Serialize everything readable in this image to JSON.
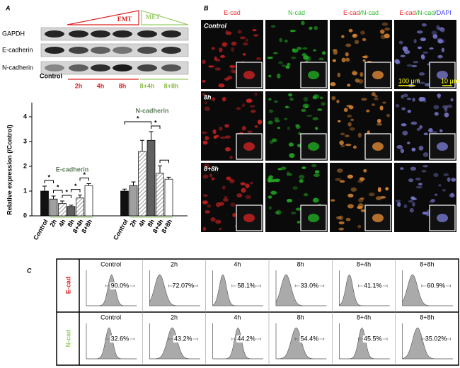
{
  "panel_labels": [
    "A",
    "B",
    "C"
  ],
  "blot": {
    "phases": [
      "EMT",
      "MET"
    ],
    "rows": [
      "GAPDH",
      "E-cadherin",
      "N-cadherin"
    ],
    "lanes": [
      "Control",
      "2h",
      "4h",
      "8h",
      "8+4h",
      "8+8h"
    ]
  },
  "chart_data": {
    "type": "bar",
    "y_label": "Relative expression (/Control)",
    "categories": [
      "Control",
      "2h",
      "4h",
      "8h",
      "8+4h",
      "8+8h"
    ],
    "series": [
      {
        "name": "E-cadherin",
        "values": [
          1.0,
          0.68,
          0.5,
          0.38,
          0.72,
          1.22
        ],
        "errors": [
          0.2,
          0.12,
          0.1,
          0.05,
          0.12,
          0.08
        ]
      },
      {
        "name": "N-cadherin",
        "values": [
          1.0,
          1.22,
          2.6,
          3.05,
          1.72,
          1.48
        ],
        "errors": [
          0.08,
          0.15,
          0.45,
          0.35,
          0.3,
          0.08
        ]
      }
    ],
    "fills": [
      "#111111",
      "#a0a0a0",
      "#e0e0e0",
      "#606060",
      "#f4f4f4",
      "#ffffff"
    ],
    "hatch": [
      false,
      false,
      true,
      false,
      true,
      false
    ],
    "ylim": [
      0,
      4
    ],
    "yticks": [
      0,
      1,
      2,
      3,
      4
    ],
    "significance": "*"
  },
  "microscopy": {
    "channels": [
      [
        "E-cad"
      ],
      [
        "N-cad"
      ],
      [
        "E-cad",
        "/N-cad"
      ],
      [
        "E-cad",
        "/N-cad",
        "/DAPI"
      ]
    ],
    "conditions": [
      "Control",
      "8h",
      "8+8h"
    ],
    "scale_bars": [
      "100 μm",
      "10 μm"
    ]
  },
  "flow": {
    "markers": [
      "E-cad",
      "N-cad"
    ],
    "conditions": [
      "Control",
      "2h",
      "4h",
      "8h",
      "8+4h",
      "8+8h"
    ],
    "percentages": [
      [
        "90.0%",
        "72.07%",
        "58.1%",
        "33.0%",
        "41.1%",
        "60.9%"
      ],
      [
        "32.6%",
        "43.2%",
        "44.2%",
        "54.4%",
        "45.5%",
        "35.02%"
      ]
    ]
  }
}
